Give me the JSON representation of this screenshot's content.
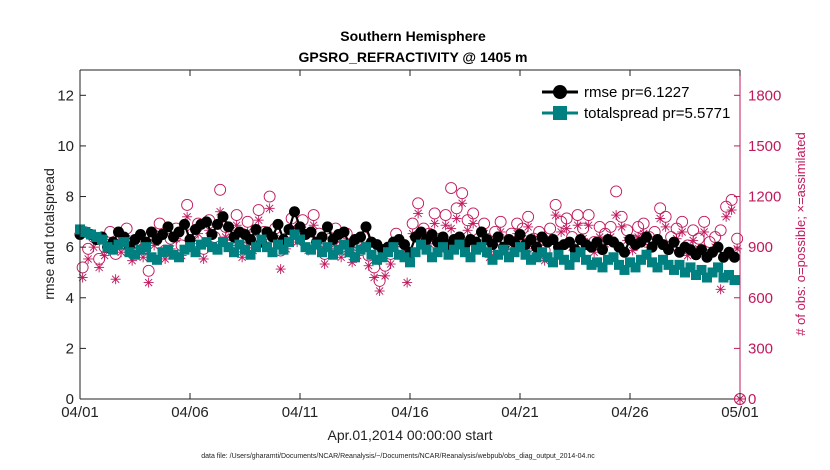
{
  "chart_data": {
    "type": "line",
    "title": "Southern Hemisphere",
    "subtitle": "GPSRO_REFRACTIVITY @ 1405 m",
    "xlabel": "Apr.01,2014 00:00:00 start",
    "ylabel": "rmse and totalspread",
    "y2label": "# of obs: o=possible; ×=assimilated",
    "xlim": [
      0,
      30
    ],
    "ylim": [
      0,
      13
    ],
    "y2lim": [
      0,
      1950
    ],
    "x_ticks": [
      0,
      5,
      10,
      15,
      20,
      25,
      30
    ],
    "x_tick_labels": [
      "04/01",
      "04/06",
      "04/11",
      "04/16",
      "04/21",
      "04/26",
      "05/01"
    ],
    "y_ticks": [
      0,
      2,
      4,
      6,
      8,
      10,
      12
    ],
    "y_tick_labels": [
      "0",
      "2",
      "4",
      "6",
      "8",
      "10",
      "12"
    ],
    "y2_ticks": [
      0,
      300,
      600,
      900,
      1200,
      1500,
      1800
    ],
    "y2_tick_labels": [
      "0",
      "300",
      "600",
      "900",
      "1200",
      "1500",
      "1800"
    ],
    "legend_position": "top-right",
    "colors": {
      "rmse": "#000000",
      "totalspread": "#008080",
      "obs": "#c0185c"
    },
    "series": [
      {
        "name": "rmse pr=6.1227",
        "axis": "left",
        "x": [
          0.0,
          0.25,
          0.5,
          0.75,
          1.0,
          1.25,
          1.5,
          1.75,
          2.0,
          2.25,
          2.5,
          2.75,
          3.0,
          3.25,
          3.5,
          3.75,
          4.0,
          4.25,
          4.5,
          4.75,
          5.0,
          5.25,
          5.5,
          5.75,
          6.0,
          6.25,
          6.5,
          6.75,
          7.0,
          7.25,
          7.5,
          7.75,
          8.0,
          8.25,
          8.5,
          8.75,
          9.0,
          9.25,
          9.5,
          9.75,
          10.0,
          10.25,
          10.5,
          10.75,
          11.0,
          11.25,
          11.5,
          11.75,
          12.0,
          12.25,
          12.5,
          12.75,
          13.0,
          13.25,
          13.5,
          13.75,
          14.0,
          14.25,
          14.5,
          14.75,
          15.0,
          15.25,
          15.5,
          15.75,
          16.0,
          16.25,
          16.5,
          16.75,
          17.0,
          17.25,
          17.5,
          17.75,
          18.0,
          18.25,
          18.5,
          18.75,
          19.0,
          19.25,
          19.5,
          19.75,
          20.0,
          20.25,
          20.5,
          20.75,
          21.0,
          21.25,
          21.5,
          21.75,
          22.0,
          22.25,
          22.5,
          22.75,
          23.0,
          23.25,
          23.5,
          23.75,
          24.0,
          24.25,
          24.5,
          24.75,
          25.0,
          25.25,
          25.5,
          25.75,
          26.0,
          26.25,
          26.5,
          26.75,
          27.0,
          27.25,
          27.5,
          27.75,
          28.0,
          28.25,
          28.5,
          28.75,
          29.0,
          29.25,
          29.5,
          29.75
        ],
        "values": [
          6.5,
          6.6,
          6.5,
          6.3,
          6.4,
          6.0,
          6.2,
          6.6,
          6.4,
          6.0,
          6.3,
          6.5,
          6.2,
          6.6,
          6.3,
          6.5,
          6.8,
          6.4,
          6.6,
          6.9,
          6.3,
          6.7,
          6.9,
          7.0,
          6.5,
          6.9,
          7.2,
          6.8,
          6.4,
          6.6,
          6.5,
          6.3,
          6.7,
          6.2,
          6.6,
          6.4,
          6.9,
          6.3,
          6.7,
          7.4,
          6.8,
          6.5,
          6.6,
          6.2,
          6.4,
          6.8,
          6.3,
          6.5,
          6.6,
          6.1,
          6.3,
          6.4,
          6.8,
          6.2,
          6.1,
          5.9,
          6.0,
          6.2,
          6.3,
          6.1,
          5.8,
          6.4,
          6.6,
          6.3,
          6.5,
          6.2,
          6.4,
          6.1,
          6.3,
          6.4,
          6.1,
          6.3,
          6.2,
          6.6,
          6.3,
          6.1,
          6.4,
          6.0,
          6.3,
          6.2,
          6.5,
          6.1,
          6.3,
          6.0,
          6.4,
          6.2,
          6.3,
          6.0,
          6.1,
          6.2,
          5.9,
          6.3,
          6.1,
          6.0,
          6.2,
          5.9,
          6.3,
          6.2,
          6.0,
          5.8,
          6.3,
          6.1,
          6.2,
          6.4,
          6.0,
          6.3,
          6.1,
          5.9,
          6.2,
          5.8,
          6.0,
          5.9,
          5.7,
          5.9,
          5.6,
          5.8,
          6.0,
          5.6,
          5.8,
          5.6
        ],
        "marker": "circle"
      },
      {
        "name": "totalspread pr=5.5771",
        "axis": "left",
        "x": [
          0.0,
          0.25,
          0.5,
          0.75,
          1.0,
          1.25,
          1.5,
          1.75,
          2.0,
          2.25,
          2.5,
          2.75,
          3.0,
          3.25,
          3.5,
          3.75,
          4.0,
          4.25,
          4.5,
          4.75,
          5.0,
          5.25,
          5.5,
          5.75,
          6.0,
          6.25,
          6.5,
          6.75,
          7.0,
          7.25,
          7.5,
          7.75,
          8.0,
          8.25,
          8.5,
          8.75,
          9.0,
          9.25,
          9.5,
          9.75,
          10.0,
          10.25,
          10.5,
          10.75,
          11.0,
          11.25,
          11.5,
          11.75,
          12.0,
          12.25,
          12.5,
          12.75,
          13.0,
          13.25,
          13.5,
          13.75,
          14.0,
          14.25,
          14.5,
          14.75,
          15.0,
          15.25,
          15.5,
          15.75,
          16.0,
          16.25,
          16.5,
          16.75,
          17.0,
          17.25,
          17.5,
          17.75,
          18.0,
          18.25,
          18.5,
          18.75,
          19.0,
          19.25,
          19.5,
          19.75,
          20.0,
          20.25,
          20.5,
          20.75,
          21.0,
          21.25,
          21.5,
          21.75,
          22.0,
          22.25,
          22.5,
          22.75,
          23.0,
          23.25,
          23.5,
          23.75,
          24.0,
          24.25,
          24.5,
          24.75,
          25.0,
          25.25,
          25.5,
          25.75,
          26.0,
          26.25,
          26.5,
          26.75,
          27.0,
          27.25,
          27.5,
          27.75,
          28.0,
          28.25,
          28.5,
          28.75,
          29.0,
          29.25,
          29.5,
          29.75
        ],
        "values": [
          6.7,
          6.6,
          6.5,
          6.4,
          6.3,
          6.0,
          5.9,
          6.1,
          6.2,
          5.8,
          5.7,
          5.9,
          6.0,
          5.6,
          5.5,
          5.8,
          5.9,
          5.7,
          5.6,
          5.9,
          6.0,
          5.8,
          6.1,
          6.2,
          6.0,
          5.9,
          6.2,
          6.0,
          5.8,
          6.1,
          5.9,
          5.7,
          6.0,
          6.3,
          6.0,
          5.8,
          6.1,
          5.9,
          6.2,
          6.5,
          6.3,
          6.0,
          5.9,
          6.1,
          5.8,
          6.0,
          5.7,
          5.9,
          6.1,
          5.8,
          5.6,
          5.9,
          6.0,
          5.7,
          5.5,
          5.6,
          5.8,
          6.0,
          5.7,
          5.6,
          5.4,
          5.8,
          6.1,
          5.9,
          5.6,
          5.8,
          6.0,
          5.7,
          5.9,
          6.1,
          5.8,
          5.6,
          5.9,
          6.0,
          5.8,
          5.5,
          5.7,
          5.9,
          5.6,
          5.8,
          6.0,
          5.7,
          5.5,
          5.6,
          5.8,
          5.6,
          5.4,
          5.7,
          5.5,
          5.3,
          5.6,
          5.8,
          5.5,
          5.3,
          5.4,
          5.2,
          5.5,
          5.6,
          5.3,
          5.1,
          5.4,
          5.2,
          5.5,
          5.7,
          5.4,
          5.2,
          5.5,
          5.3,
          5.1,
          5.3,
          5.0,
          5.2,
          4.9,
          5.1,
          4.8,
          5.0,
          5.2,
          4.8,
          4.9,
          4.7
        ],
        "marker": "square"
      },
      {
        "name": "possible",
        "axis": "right",
        "x": [
          0.12,
          0.37,
          0.62,
          0.87,
          1.12,
          1.37,
          1.62,
          1.87,
          2.12,
          2.37,
          2.62,
          2.87,
          3.12,
          3.37,
          3.62,
          3.87,
          4.12,
          4.37,
          4.62,
          4.87,
          5.12,
          5.37,
          5.62,
          5.87,
          6.12,
          6.37,
          6.62,
          6.87,
          7.12,
          7.37,
          7.62,
          7.87,
          8.12,
          8.37,
          8.62,
          8.87,
          9.12,
          9.37,
          9.62,
          9.87,
          10.12,
          10.37,
          10.62,
          10.87,
          11.12,
          11.37,
          11.62,
          11.87,
          12.12,
          12.37,
          12.62,
          12.87,
          13.12,
          13.37,
          13.62,
          13.87,
          14.12,
          14.37,
          14.62,
          14.87,
          15.12,
          15.37,
          15.62,
          15.87,
          16.12,
          16.37,
          16.62,
          16.87,
          17.12,
          17.37,
          17.62,
          17.87,
          18.12,
          18.37,
          18.62,
          18.87,
          19.12,
          19.37,
          19.62,
          19.87,
          20.12,
          20.37,
          20.62,
          20.87,
          21.12,
          21.37,
          21.62,
          21.87,
          22.12,
          22.37,
          22.62,
          22.87,
          23.12,
          23.37,
          23.62,
          23.87,
          24.12,
          24.37,
          24.62,
          24.87,
          25.12,
          25.37,
          25.62,
          25.87,
          26.12,
          26.37,
          26.62,
          26.87,
          27.12,
          27.37,
          27.62,
          27.87,
          28.12,
          28.37,
          28.62,
          28.87,
          29.12,
          29.37,
          29.62,
          29.87
        ],
        "values": [
          780,
          890,
          960,
          830,
          900,
          990,
          860,
          920,
          1010,
          870,
          940,
          890,
          760,
          970,
          1040,
          880,
          950,
          1010,
          910,
          1150,
          980,
          1040,
          890,
          1060,
          960,
          1240,
          1020,
          970,
          1090,
          900,
          1050,
          940,
          1120,
          990,
          1200,
          1010,
          880,
          950,
          1070,
          990,
          1060,
          940,
          1090,
          980,
          860,
          950,
          1010,
          900,
          980,
          870,
          910,
          960,
          850,
          780,
          700,
          790,
          860,
          980,
          910,
          850,
          1040,
          1160,
          1010,
          980,
          1100,
          950,
          1090,
          1250,
          1130,
          1220,
          1060,
          1100,
          950,
          1040,
          900,
          990,
          1050,
          930,
          980,
          1040,
          1010,
          1080,
          950,
          990,
          880,
          1010,
          1150,
          1050,
          1070,
          960,
          1090,
          1010,
          1090,
          930,
          1020,
          980,
          1020,
          1230,
          1080,
          1000,
          940,
          1020,
          1040,
          960,
          990,
          1130,
          1080,
          960,
          1010,
          1050,
          910,
          1000,
          950,
          1050,
          930,
          960,
          1000,
          1140,
          1180,
          950
        ],
        "marker": "open-circle"
      },
      {
        "name": "assimilated",
        "axis": "right",
        "x": [
          0.12,
          0.37,
          0.62,
          0.87,
          1.12,
          1.37,
          1.62,
          1.87,
          2.12,
          2.37,
          2.62,
          2.87,
          3.12,
          3.37,
          3.62,
          3.87,
          4.12,
          4.37,
          4.62,
          4.87,
          5.12,
          5.37,
          5.62,
          5.87,
          6.12,
          6.37,
          6.62,
          6.87,
          7.12,
          7.37,
          7.62,
          7.87,
          8.12,
          8.37,
          8.62,
          8.87,
          9.12,
          9.37,
          9.62,
          9.87,
          10.12,
          10.37,
          10.62,
          10.87,
          11.12,
          11.37,
          11.62,
          11.87,
          12.12,
          12.37,
          12.62,
          12.87,
          13.12,
          13.37,
          13.62,
          13.87,
          14.12,
          14.37,
          14.62,
          14.87,
          15.12,
          15.37,
          15.62,
          15.87,
          16.12,
          16.37,
          16.62,
          16.87,
          17.12,
          17.37,
          17.62,
          17.87,
          18.12,
          18.37,
          18.62,
          18.87,
          19.12,
          19.37,
          19.62,
          19.87,
          20.12,
          20.37,
          20.62,
          20.87,
          21.12,
          21.37,
          21.62,
          21.87,
          22.12,
          22.37,
          22.62,
          22.87,
          23.12,
          23.37,
          23.62,
          23.87,
          24.12,
          24.37,
          24.62,
          24.87,
          25.12,
          25.37,
          25.62,
          25.87,
          26.12,
          26.37,
          26.62,
          26.87,
          27.12,
          27.37,
          27.62,
          27.87,
          28.12,
          28.37,
          28.62,
          28.87,
          29.12,
          29.37,
          29.62,
          29.87
        ],
        "values": [
          720,
          830,
          900,
          780,
          850,
          930,
          710,
          870,
          950,
          820,
          880,
          840,
          690,
          910,
          980,
          830,
          890,
          950,
          850,
          1080,
          920,
          980,
          830,
          1000,
          900,
          1110,
          960,
          910,
          1030,
          840,
          990,
          880,
          1060,
          930,
          1130,
          950,
          770,
          890,
          1010,
          930,
          1000,
          880,
          1030,
          920,
          800,
          890,
          950,
          840,
          920,
          810,
          850,
          900,
          790,
          720,
          640,
          730,
          800,
          920,
          850,
          690,
          980,
          1100,
          950,
          920,
          1040,
          890,
          1030,
          1010,
          1070,
          1160,
          1000,
          1040,
          890,
          980,
          840,
          930,
          990,
          870,
          920,
          980,
          950,
          1020,
          890,
          930,
          820,
          950,
          1090,
          990,
          1010,
          900,
          1030,
          950,
          1030,
          870,
          960,
          920,
          960,
          1090,
          1020,
          940,
          880,
          960,
          980,
          900,
          930,
          1070,
          1020,
          900,
          950,
          990,
          850,
          940,
          890,
          990,
          870,
          900,
          650,
          1080,
          1120,
          890
        ],
        "marker": "asterisk"
      }
    ]
  },
  "footer": "data file: /Users/gharamti/Documents/NCAR/Reanalysis/~/Documents/NCAR/Reanalysis/webpub/obs_diag_output_2014-04.nc"
}
